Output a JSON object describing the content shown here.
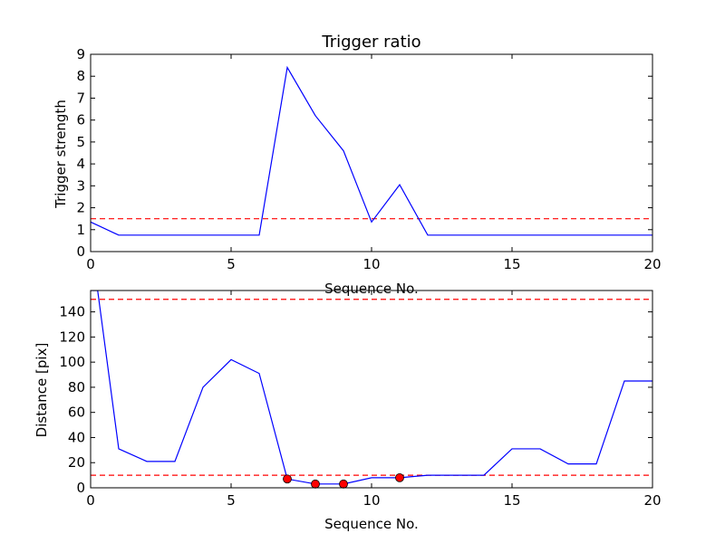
{
  "chart_data": [
    {
      "type": "line",
      "title": "Trigger ratio",
      "xlabel": "Sequence No.",
      "ylabel": "Trigger strength",
      "xlim": [
        0,
        20
      ],
      "ylim": [
        0,
        9
      ],
      "xticks": [
        0,
        5,
        10,
        15,
        20
      ],
      "yticks": [
        0,
        1,
        2,
        3,
        4,
        5,
        6,
        7,
        8,
        9
      ],
      "series": [
        {
          "style": "solid",
          "color": "#0000ff",
          "x": [
            0,
            1,
            2,
            3,
            4,
            5,
            6,
            7,
            8,
            9,
            10,
            11,
            12,
            13,
            14,
            15,
            16,
            17,
            18,
            19,
            20
          ],
          "y": [
            1.35,
            0.75,
            0.75,
            0.75,
            0.75,
            0.75,
            0.75,
            8.4,
            6.2,
            4.6,
            1.35,
            3.05,
            0.75,
            0.75,
            0.75,
            0.75,
            0.75,
            0.75,
            0.75,
            0.75,
            0.75
          ]
        }
      ],
      "hlines": [
        {
          "y": 1.5,
          "style": "dashed",
          "color": "#ff0000"
        }
      ]
    },
    {
      "type": "line",
      "title": "",
      "xlabel": "Sequence No.",
      "ylabel": "Distance [pix]",
      "xlim": [
        0,
        20
      ],
      "ylim": [
        0,
        157
      ],
      "xticks": [
        0,
        5,
        10,
        15,
        20
      ],
      "yticks": [
        0,
        20,
        40,
        60,
        80,
        100,
        120,
        140
      ],
      "series": [
        {
          "style": "solid",
          "color": "#0000ff",
          "x": [
            0,
            0.25,
            1,
            2,
            3,
            4,
            5,
            6,
            7,
            8,
            9,
            10,
            11,
            12,
            13,
            14,
            15,
            16,
            17,
            18,
            19,
            20
          ],
          "y": [
            157,
            157,
            31,
            21,
            21,
            80,
            102,
            91,
            7,
            3,
            3,
            8,
            8,
            10,
            10,
            10,
            31,
            31,
            19,
            19,
            85,
            85
          ]
        }
      ],
      "markers": {
        "color": "#ff0000",
        "x": [
          7,
          8,
          9,
          11
        ],
        "y": [
          7,
          3,
          3,
          8
        ]
      },
      "hlines": [
        {
          "y": 150,
          "style": "dashed",
          "color": "#ff0000"
        },
        {
          "y": 10,
          "style": "dashed",
          "color": "#ff0000"
        }
      ]
    }
  ]
}
